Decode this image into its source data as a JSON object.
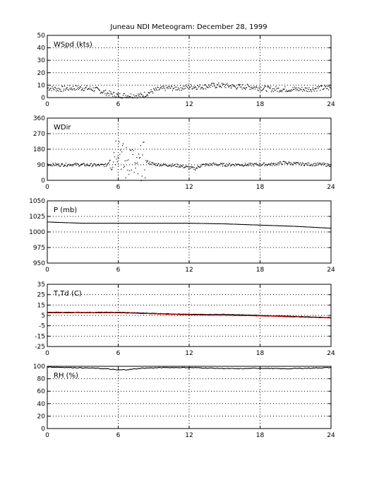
{
  "title": "Juneau NDI Meteogram:   December 28, 1999",
  "chart_data": [
    {
      "type": "scatter",
      "label": "WSpd (kts)",
      "xlim": [
        0,
        24
      ],
      "xticks": [
        0,
        6,
        12,
        18,
        24
      ],
      "ylim": [
        0,
        50
      ],
      "yticks": [
        0,
        10,
        20,
        30,
        40,
        50
      ],
      "grid": true,
      "color": "#000000",
      "series": [
        {
          "x": [
            0,
            1,
            2,
            3,
            4,
            5,
            6,
            7,
            8,
            9,
            10,
            11,
            12,
            13,
            14,
            15,
            16,
            17,
            18,
            19,
            20,
            21,
            22,
            23,
            24
          ],
          "y": [
            8,
            7,
            8,
            8,
            7,
            4,
            2,
            2,
            2,
            6,
            8,
            8,
            9,
            9,
            10,
            10,
            9,
            9,
            8,
            7,
            7,
            7,
            7,
            8,
            8
          ]
        }
      ]
    },
    {
      "type": "scatter",
      "label": "WDir",
      "xlim": [
        0,
        24
      ],
      "xticks": [
        0,
        6,
        12,
        18,
        24
      ],
      "ylim": [
        0,
        360
      ],
      "yticks": [
        0,
        90,
        180,
        270,
        360
      ],
      "grid": true,
      "color": "#000000",
      "series": [
        {
          "x": [
            0,
            1,
            2,
            3,
            4,
            5,
            5.5,
            6,
            6.5,
            7,
            7.5,
            8,
            9,
            10,
            11,
            12,
            12.5,
            13,
            14,
            15,
            16,
            17,
            18,
            19,
            20,
            21,
            22,
            23,
            24
          ],
          "y": [
            95,
            92,
            94,
            92,
            90,
            90,
            150,
            220,
            80,
            150,
            40,
            120,
            95,
            92,
            88,
            75,
            70,
            90,
            95,
            92,
            94,
            92,
            95,
            95,
            105,
            98,
            95,
            95,
            90
          ]
        }
      ]
    },
    {
      "type": "line",
      "label": "P (mb)",
      "xlim": [
        0,
        24
      ],
      "xticks": [
        0,
        6,
        12,
        18,
        24
      ],
      "ylim": [
        950,
        1050
      ],
      "yticks": [
        950,
        975,
        1000,
        1025,
        1050
      ],
      "grid": true,
      "color": "#000000",
      "series": [
        {
          "x": [
            0,
            3,
            6,
            9,
            12,
            15,
            18,
            21,
            24
          ],
          "y": [
            1016,
            1014,
            1014,
            1014,
            1014,
            1013,
            1011,
            1009,
            1006
          ]
        }
      ]
    },
    {
      "type": "line",
      "label": "T,Td (C)",
      "xlim": [
        0,
        24
      ],
      "xticks": [
        0,
        6,
        12,
        18,
        24
      ],
      "ylim": [
        -25,
        35
      ],
      "yticks": [
        -25,
        -15,
        -5,
        5,
        15,
        25,
        35
      ],
      "grid": true,
      "series": [
        {
          "color": "#000000",
          "x": [
            0,
            3,
            6,
            9,
            12,
            15,
            18,
            21,
            24
          ],
          "y": [
            8,
            8,
            8,
            7,
            6,
            6,
            5,
            4,
            3
          ]
        },
        {
          "color": "#dd0000",
          "x": [
            0,
            3,
            6,
            9,
            12,
            15,
            18,
            21,
            24
          ],
          "y": [
            7.5,
            7.5,
            7.5,
            6.5,
            5.5,
            5,
            4.5,
            3.5,
            2.5
          ]
        }
      ]
    },
    {
      "type": "line",
      "label": "RH (%)",
      "xlim": [
        0,
        24
      ],
      "xticks": [
        0,
        6,
        12,
        18,
        24
      ],
      "ylim": [
        0,
        100
      ],
      "yticks": [
        0,
        20,
        40,
        60,
        80,
        100
      ],
      "grid": true,
      "color": "#000000",
      "series": [
        {
          "x": [
            0,
            2,
            4,
            5,
            6,
            7,
            8,
            10,
            12,
            14,
            16,
            18,
            20,
            22,
            24
          ],
          "y": [
            99,
            98,
            97,
            96,
            94,
            95,
            97,
            98,
            98,
            97,
            96,
            97,
            96,
            97,
            98
          ]
        }
      ]
    }
  ]
}
